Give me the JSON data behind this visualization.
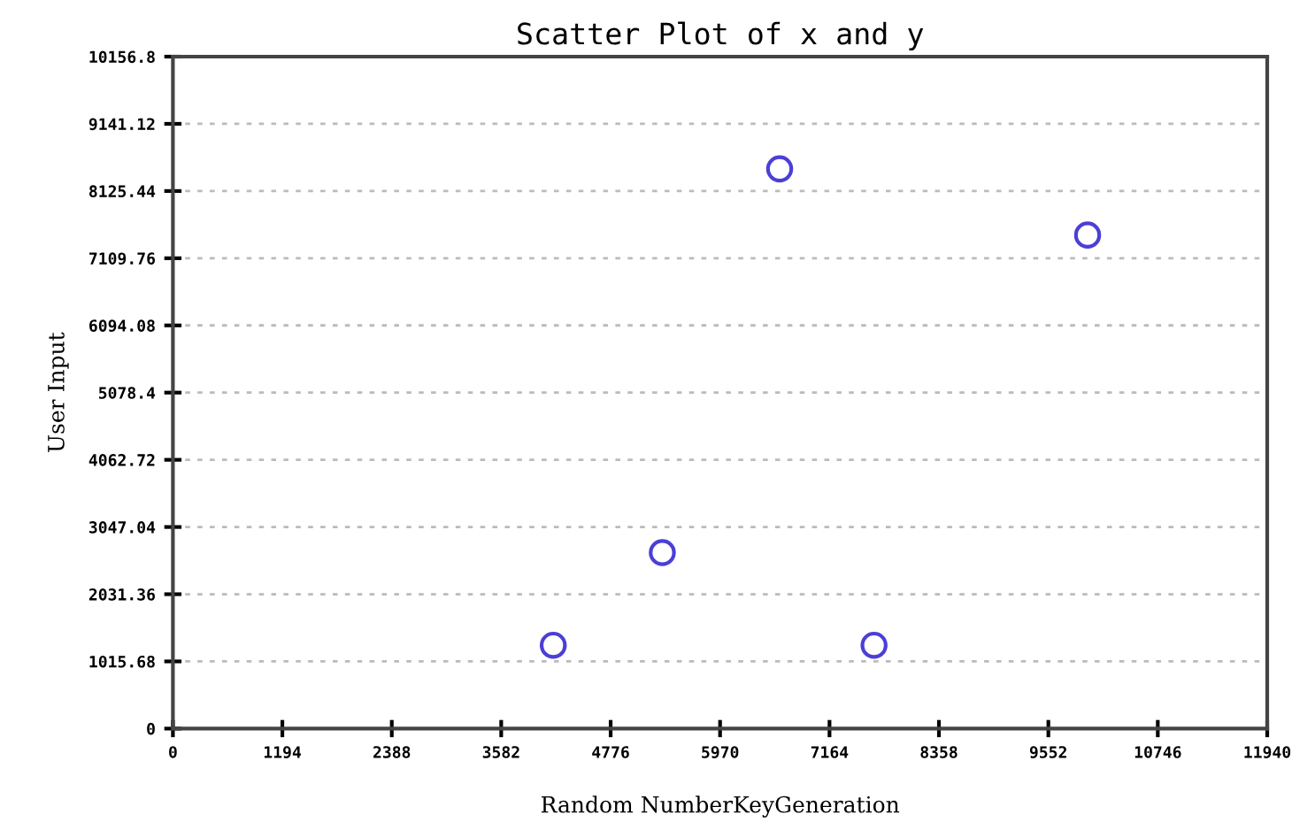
{
  "chart_data": {
    "type": "scatter",
    "title": "Scatter Plot of x and y",
    "xlabel": "Random NumberKeyGeneration",
    "ylabel": "User Input",
    "x": [
      4150,
      5340,
      6620,
      9980,
      7650
    ],
    "series": [
      {
        "color": "#4b3fd6",
        "values": [
          1260,
          2660,
          8460,
          7460,
          1260
        ]
      }
    ],
    "xlim": [
      0,
      11940
    ],
    "xticks": [
      0,
      1194,
      2388,
      3582,
      4776,
      5970,
      7164,
      8358,
      9552,
      10746,
      11940
    ],
    "ylim": [
      0,
      10156.8
    ],
    "yticks": [
      0,
      1015.68,
      2031.36,
      3047.04,
      4062.72,
      5078.4,
      6094.08,
      7109.76,
      8125.44,
      9141.12,
      10156.8
    ],
    "grid": "y",
    "marker": "circle"
  }
}
